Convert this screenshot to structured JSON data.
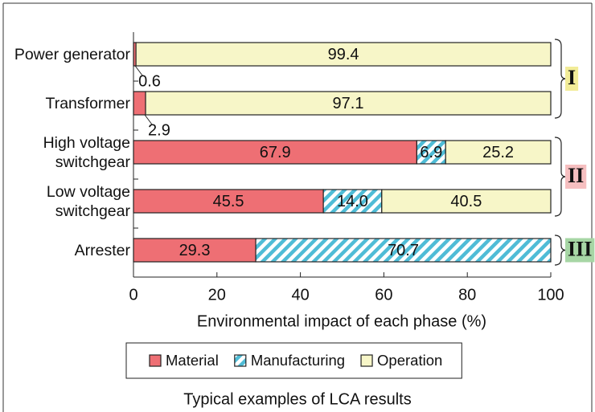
{
  "chart_data": {
    "type": "stacked_barh",
    "categories": [
      "Power generator",
      "Transformer",
      "High voltage switchgear",
      "Low voltage switchgear",
      "Arrester"
    ],
    "series": [
      {
        "name": "Material",
        "color": "#ee6f74",
        "values": [
          0.6,
          2.9,
          67.9,
          45.5,
          29.3
        ]
      },
      {
        "name": "Manufacturing",
        "color": "#4fbcd6",
        "hatch": true,
        "values": [
          null,
          null,
          6.9,
          14.0,
          70.7
        ],
        "value_labels": [
          null,
          null,
          "6.9",
          "14.0",
          "70.7"
        ]
      },
      {
        "name": "Operation",
        "color": "#f7f6c8",
        "values": [
          99.4,
          97.1,
          25.2,
          40.5,
          null
        ]
      }
    ],
    "xlim": [
      0,
      100
    ],
    "xticks": [
      0,
      20,
      40,
      60,
      80,
      100
    ],
    "xlabel": "Environmental impact of each phase (%)",
    "groups": [
      {
        "label": "I",
        "color": "#f2ec98",
        "start": 0,
        "end": 1
      },
      {
        "label": "II",
        "color": "#f6bfc0",
        "start": 2,
        "end": 3
      },
      {
        "label": "III",
        "color": "#a7d6a5",
        "start": 4,
        "end": 4
      }
    ],
    "caption": "Typical examples of LCA results"
  }
}
